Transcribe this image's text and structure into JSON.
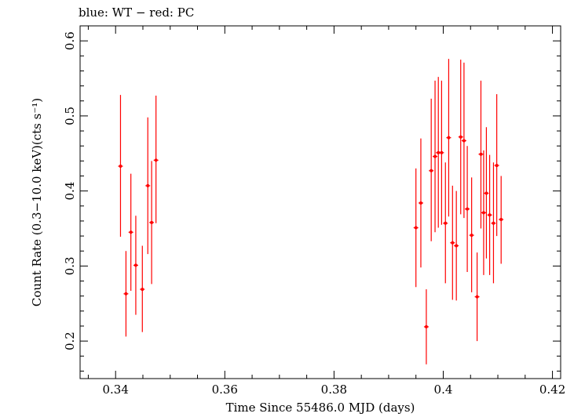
{
  "chart_data": {
    "type": "scatter",
    "title": "blue: WT − red: PC",
    "xlabel": "Time Since 55486.0 MJD (days)",
    "ylabel": "Count Rate (0.3−10.0 keV)(cts s⁻¹)",
    "xlim": [
      0.3335,
      0.4215
    ],
    "ylim": [
      0.15,
      0.62
    ],
    "x_ticks": [
      "0.34",
      "0.36",
      "0.38",
      "0.4",
      "0.42"
    ],
    "y_ticks": [
      "0.2",
      "0.3",
      "0.4",
      "0.5",
      "0.6"
    ],
    "grid": false,
    "series": [
      {
        "name": "PC",
        "color": "#ff0000",
        "points": [
          {
            "x": 0.3409,
            "y": 0.433,
            "ylo": 0.339,
            "yhi": 0.528
          },
          {
            "x": 0.3419,
            "y": 0.263,
            "ylo": 0.206,
            "yhi": 0.32
          },
          {
            "x": 0.3428,
            "y": 0.345,
            "ylo": 0.267,
            "yhi": 0.423
          },
          {
            "x": 0.3437,
            "y": 0.301,
            "ylo": 0.235,
            "yhi": 0.367
          },
          {
            "x": 0.3449,
            "y": 0.269,
            "ylo": 0.212,
            "yhi": 0.327
          },
          {
            "x": 0.3459,
            "y": 0.407,
            "ylo": 0.316,
            "yhi": 0.498
          },
          {
            "x": 0.3466,
            "y": 0.358,
            "ylo": 0.276,
            "yhi": 0.44
          },
          {
            "x": 0.3474,
            "y": 0.441,
            "ylo": 0.357,
            "yhi": 0.527
          },
          {
            "x": 0.395,
            "y": 0.351,
            "ylo": 0.272,
            "yhi": 0.43
          },
          {
            "x": 0.3959,
            "y": 0.384,
            "ylo": 0.298,
            "yhi": 0.47
          },
          {
            "x": 0.3969,
            "y": 0.219,
            "ylo": 0.169,
            "yhi": 0.269
          },
          {
            "x": 0.3978,
            "y": 0.427,
            "ylo": 0.333,
            "yhi": 0.523
          },
          {
            "x": 0.3985,
            "y": 0.446,
            "ylo": 0.345,
            "yhi": 0.547
          },
          {
            "x": 0.3991,
            "y": 0.451,
            "ylo": 0.351,
            "yhi": 0.552
          },
          {
            "x": 0.3997,
            "y": 0.451,
            "ylo": 0.355,
            "yhi": 0.547
          },
          {
            "x": 0.4004,
            "y": 0.357,
            "ylo": 0.277,
            "yhi": 0.438
          },
          {
            "x": 0.401,
            "y": 0.471,
            "ylo": 0.366,
            "yhi": 0.576
          },
          {
            "x": 0.4017,
            "y": 0.331,
            "ylo": 0.255,
            "yhi": 0.407
          },
          {
            "x": 0.4024,
            "y": 0.327,
            "ylo": 0.254,
            "yhi": 0.4
          },
          {
            "x": 0.4032,
            "y": 0.472,
            "ylo": 0.369,
            "yhi": 0.575
          },
          {
            "x": 0.4038,
            "y": 0.467,
            "ylo": 0.364,
            "yhi": 0.571
          },
          {
            "x": 0.4044,
            "y": 0.376,
            "ylo": 0.292,
            "yhi": 0.46
          },
          {
            "x": 0.4052,
            "y": 0.341,
            "ylo": 0.265,
            "yhi": 0.418
          },
          {
            "x": 0.4062,
            "y": 0.259,
            "ylo": 0.2,
            "yhi": 0.318
          },
          {
            "x": 0.4069,
            "y": 0.449,
            "ylo": 0.35,
            "yhi": 0.547
          },
          {
            "x": 0.4074,
            "y": 0.371,
            "ylo": 0.288,
            "yhi": 0.454
          },
          {
            "x": 0.4079,
            "y": 0.397,
            "ylo": 0.31,
            "yhi": 0.485
          },
          {
            "x": 0.4085,
            "y": 0.368,
            "ylo": 0.288,
            "yhi": 0.448
          },
          {
            "x": 0.4092,
            "y": 0.357,
            "ylo": 0.277,
            "yhi": 0.438
          },
          {
            "x": 0.4098,
            "y": 0.434,
            "ylo": 0.34,
            "yhi": 0.529
          },
          {
            "x": 0.4106,
            "y": 0.362,
            "ylo": 0.303,
            "yhi": 0.42
          }
        ]
      }
    ]
  }
}
